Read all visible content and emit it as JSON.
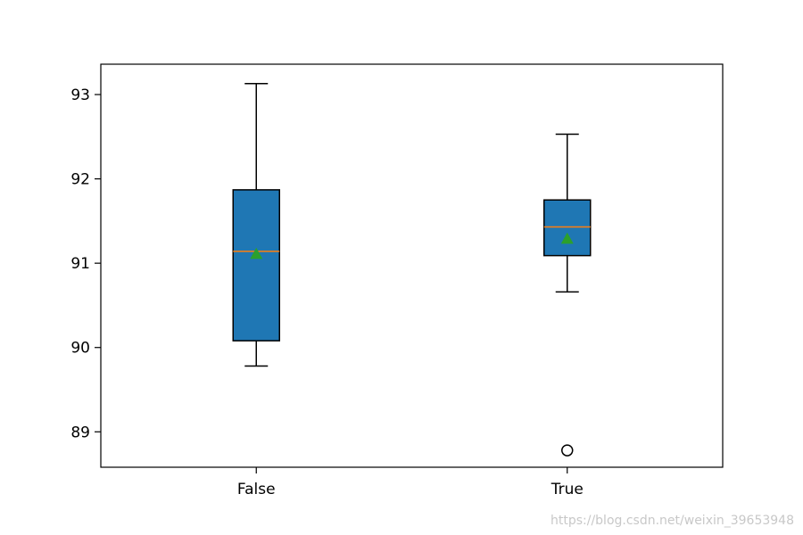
{
  "chart_data": {
    "type": "box",
    "categories": [
      "False",
      "True"
    ],
    "boxes": [
      {
        "category": "False",
        "whisker_low": 89.78,
        "q1": 90.08,
        "median": 91.14,
        "mean": 91.11,
        "q3": 91.87,
        "whisker_high": 93.13,
        "outliers": []
      },
      {
        "category": "True",
        "whisker_low": 90.66,
        "q1": 91.09,
        "median": 91.43,
        "mean": 91.29,
        "q3": 91.75,
        "whisker_high": 92.53,
        "outliers": [
          88.78
        ]
      }
    ],
    "ylim": [
      88.58,
      93.36
    ],
    "yticks": [
      89,
      90,
      91,
      92,
      93
    ],
    "box_color": "#1f77b4",
    "median_color": "#ff7f0e",
    "mean_marker_color": "#2ca02c",
    "title": "",
    "xlabel": "",
    "ylabel": ""
  },
  "watermark": "https://blog.csdn.net/weixin_39653948"
}
